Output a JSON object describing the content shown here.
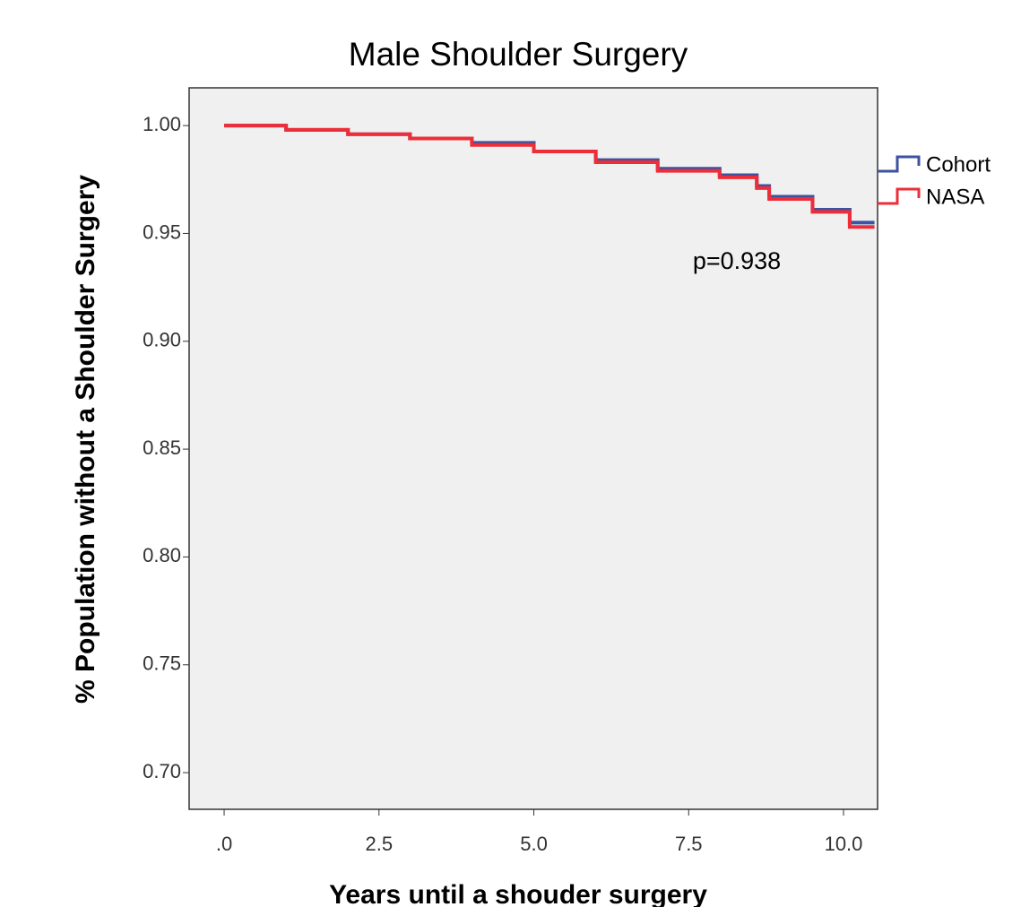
{
  "chart_data": {
    "type": "step",
    "title": "Male Shoulder Surgery",
    "x_label": "Years until a shouder surgery",
    "y_label": "% Population without a Shoulder Surgery",
    "annotation": "p=0.938",
    "x": [
      0,
      1,
      2,
      3,
      4,
      5,
      6,
      7,
      8,
      8.6,
      8.8,
      9.5,
      10.1,
      10.5
    ],
    "series": [
      {
        "name": "Cohort",
        "color": "#3d52a1",
        "values": [
          1.0,
          0.998,
          0.996,
          0.994,
          0.992,
          0.988,
          0.984,
          0.98,
          0.977,
          0.972,
          0.967,
          0.961,
          0.955,
          0.955
        ]
      },
      {
        "name": "NASA",
        "color": "#ed2e38",
        "values": [
          1.0,
          0.998,
          0.996,
          0.994,
          0.991,
          0.988,
          0.983,
          0.979,
          0.976,
          0.971,
          0.966,
          0.96,
          0.953,
          0.953
        ]
      }
    ],
    "xlim": [
      -0.565,
      10.55
    ],
    "ylim": [
      0.683,
      1.0175
    ],
    "xticks": [
      {
        "value": 0,
        "label": ".0"
      },
      2.5,
      {
        "value": 5,
        "label": "5.0"
      },
      7.5,
      {
        "value": 10,
        "label": "10.0"
      }
    ],
    "yticks": [
      {
        "value": 0.7,
        "label": "0.70"
      },
      0.75,
      {
        "value": 0.8,
        "label": "0.80"
      },
      0.85,
      {
        "value": 0.9,
        "label": "0.90"
      },
      0.95,
      {
        "value": 1.0,
        "label": "1.00"
      }
    ],
    "grid": false,
    "legend": "right"
  }
}
